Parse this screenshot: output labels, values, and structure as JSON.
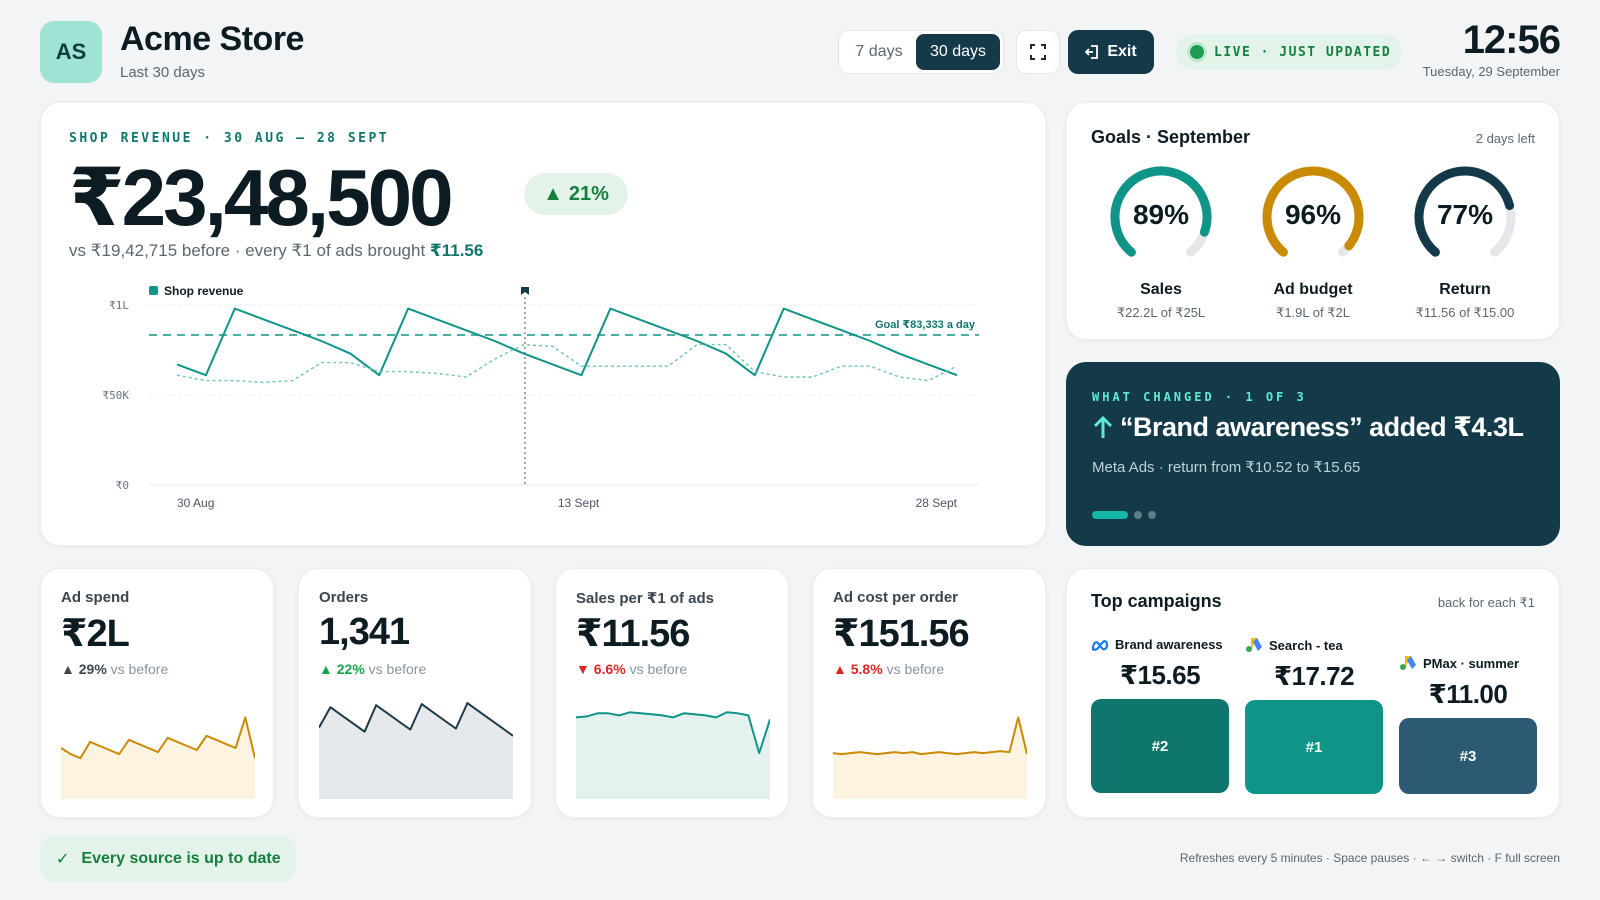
{
  "header": {
    "logo_initials": "AS",
    "title": "Acme Store",
    "subtitle": "Last 30 days",
    "range_options": [
      "7 days",
      "30 days"
    ],
    "range_selected": "30 days",
    "fullscreen_icon": "fullscreen-icon",
    "exit_label": "Exit",
    "live_label": "LIVE · JUST UPDATED",
    "time": "12:56",
    "date": "Tuesday, 29 September"
  },
  "revenue": {
    "eyebrow": "SHOP REVENUE · 30 AUG – 28 SEPT",
    "total": "₹23,48,500",
    "change": "21%",
    "comparison_text": "vs ₹19,42,715 before · every ₹1 of ads brought ",
    "roas": "₹11.56",
    "legend": "Shop revenue",
    "goal_label": "Goal ₹83,333 a day",
    "marker_icon": "flag-icon"
  },
  "chart_data": {
    "type": "line",
    "x_labels": [
      "30 Aug",
      "13 Sept",
      "28 Sept"
    ],
    "y_ticks": [
      "₹0",
      "₹50K",
      "₹1L"
    ],
    "ylim": [
      0,
      100000
    ],
    "goal": 83333,
    "marker_index": 14,
    "series": [
      {
        "name": "Shop revenue",
        "values": [
          67000,
          61000,
          98000,
          92000,
          86000,
          80000,
          73000,
          61000,
          98000,
          92000,
          86000,
          80000,
          73000,
          67000,
          61000,
          98000,
          92000,
          86000,
          80000,
          73000,
          61000,
          98000,
          92000,
          86000,
          80000,
          73000,
          67000,
          61000
        ]
      },
      {
        "values": [
          61000,
          58000,
          58000,
          57000,
          58000,
          68000,
          68000,
          63000,
          63000,
          62000,
          60000,
          70000,
          78000,
          77000,
          66000,
          66000,
          66000,
          66000,
          78000,
          78000,
          63000,
          60000,
          60000,
          66000,
          66000,
          60000,
          58000,
          66000
        ]
      }
    ]
  },
  "goals": {
    "title": "Goals · September",
    "days_left": "2 days left",
    "items": [
      {
        "pct": 89,
        "label": "89%",
        "name": "Sales",
        "detail": "₹22.2L of ₹25L",
        "color": "#0f9488"
      },
      {
        "pct": 96,
        "label": "96%",
        "name": "Ad budget",
        "detail": "₹1.9L of ₹2L",
        "color": "#ca8a04"
      },
      {
        "pct": 77,
        "label": "77%",
        "name": "Return",
        "detail": "₹11.56 of ₹15.00",
        "color": "#143a4a"
      }
    ]
  },
  "changed": {
    "eyebrow": "WHAT CHANGED · 1 OF 3",
    "title": "“Brand awareness” added ₹4.3L",
    "subtitle": "Meta Ads · return from ₹10.52 to ₹15.65",
    "slide_index": 1,
    "slide_count": 3
  },
  "kpis": [
    {
      "label": "Ad spend",
      "value": "₹2L",
      "change": "29%",
      "direction": "up",
      "tone": "neutral",
      "suffix": "vs before",
      "color": "#ca8a04",
      "fill": "#fdf3e1",
      "spark": [
        50,
        44,
        40,
        56,
        52,
        48,
        44,
        58,
        54,
        50,
        46,
        60,
        56,
        52,
        48,
        62,
        58,
        54,
        50,
        80,
        40
      ]
    },
    {
      "label": "Orders",
      "value": "1,341",
      "change": "22%",
      "direction": "up",
      "tone": "good",
      "suffix": "vs before",
      "color": "#1e3a4a",
      "fill": "#e6e9ec",
      "spark": [
        70,
        90,
        82,
        74,
        66,
        92,
        84,
        76,
        68,
        93,
        85,
        77,
        69,
        94,
        86,
        78,
        70,
        62
      ]
    },
    {
      "label": "Sales per ₹1 of ads",
      "value": "₹11.56",
      "change": "6.6%",
      "direction": "down",
      "tone": "bad",
      "suffix": "vs before",
      "color": "#0f9488",
      "fill": "#e4f2ef",
      "spark": [
        80,
        81,
        84,
        84,
        82,
        85,
        84,
        83,
        82,
        80,
        84,
        83,
        82,
        80,
        85,
        84,
        82,
        45,
        78
      ]
    },
    {
      "label": "Ad cost per order",
      "value": "₹151.56",
      "change": "5.8%",
      "direction": "up",
      "tone": "bad",
      "suffix": "vs before",
      "color": "#ca8a04",
      "fill": "#fdf3e1",
      "spark": [
        45,
        44,
        45,
        46,
        45,
        44,
        45,
        46,
        45,
        46,
        44,
        45,
        46,
        45,
        44,
        45,
        46,
        45,
        46,
        47,
        46,
        80,
        44
      ]
    }
  ],
  "campaigns": {
    "title": "Top campaigns",
    "note": "back for each ₹1",
    "items": [
      {
        "name": "Brand awareness",
        "icon": "meta-icon",
        "value": "₹15.65",
        "rank": "#2",
        "color": "#0f766e"
      },
      {
        "name": "Search - tea",
        "icon": "google-ads-icon",
        "value": "₹17.72",
        "rank": "#1",
        "color": "#0f9488"
      },
      {
        "name": "PMax · summer",
        "icon": "google-ads-icon",
        "value": "₹11.00",
        "rank": "#3",
        "color": "#2b5a72"
      }
    ]
  },
  "footer": {
    "status": "Every source is up to date",
    "hint": "Refreshes every 5 minutes · Space pauses · ← → switch · F full screen"
  }
}
